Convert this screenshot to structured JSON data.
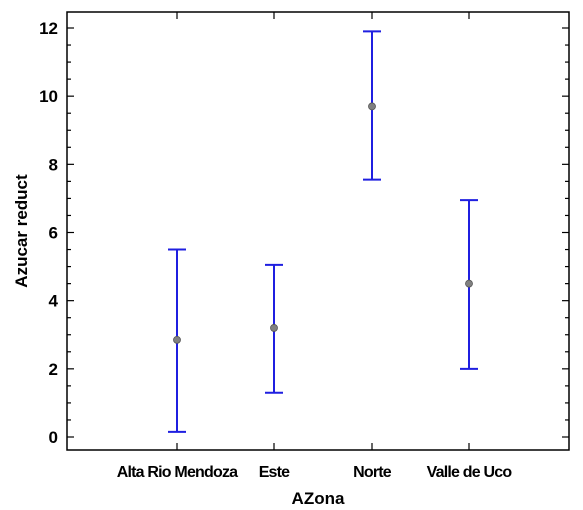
{
  "chart_data": {
    "type": "scatter",
    "subtype": "means-with-intervals",
    "title": "",
    "xlabel": "AZona",
    "ylabel": "Azucar reduct",
    "ylim": [
      0,
      12
    ],
    "yticks": [
      0,
      2,
      4,
      6,
      8,
      10,
      12
    ],
    "grid": false,
    "legend": "none",
    "categories": [
      "Alta Rio Mendoza",
      "Este",
      "Norte",
      "Valle de Uco"
    ],
    "means": [
      2.85,
      3.2,
      9.7,
      4.5
    ],
    "lower": [
      0.15,
      1.3,
      7.55,
      2.0
    ],
    "upper": [
      5.5,
      5.05,
      11.9,
      6.95
    ],
    "colors": {
      "interval": "#1f1fe0",
      "mean": "#808080",
      "axis": "#000000"
    }
  }
}
